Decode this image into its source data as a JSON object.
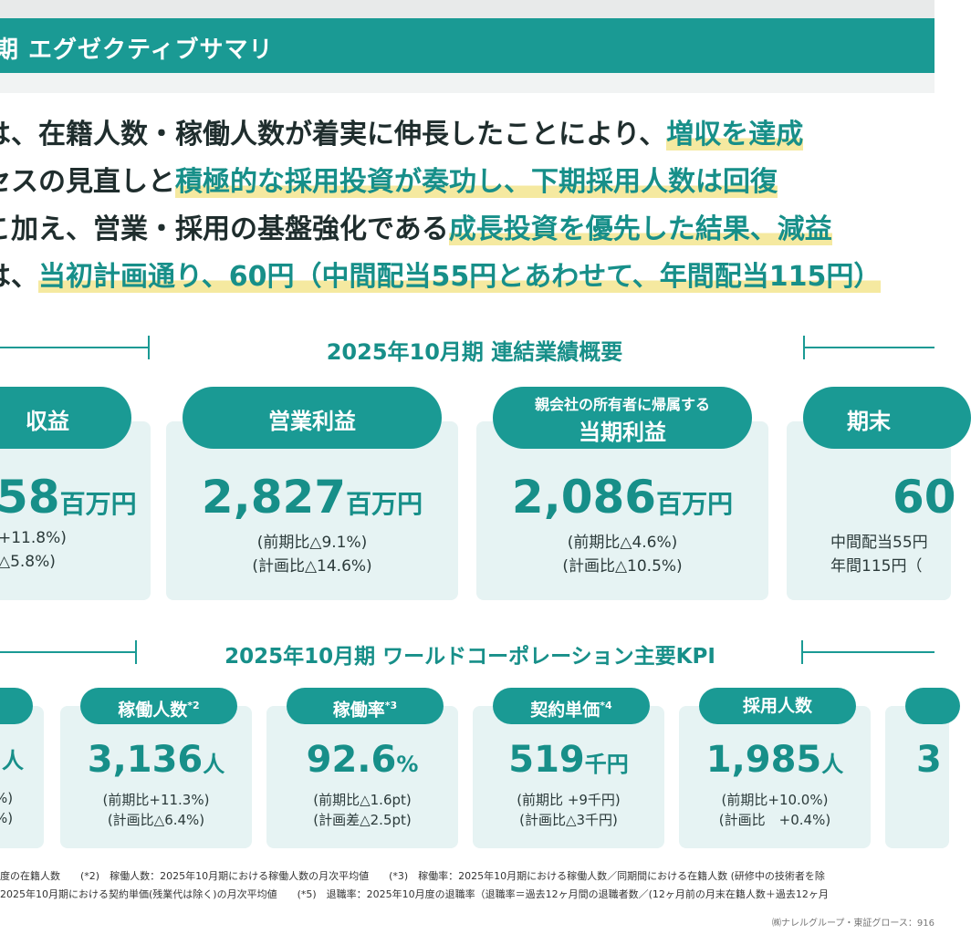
{
  "header": {
    "title": "期 エグゼクティブサマリ"
  },
  "summary": {
    "line1_plain": "は、在籍人数・稼働人数が着実に伸長したことにより、",
    "line1_hl": "増収を達成",
    "line2_plain": "セスの見直しと",
    "line2_hl": "積極的な採用投資が奏功し、下期採用人数は回復",
    "line3_plain": "こ加え、営業・採用の基盤強化である",
    "line3_hl": "成長投資を優先した結果、減益",
    "line4_plain": "は、",
    "line4_hl": "当初計画通り、60円（中間配当55円とあわせて、年間配当115円）"
  },
  "results": {
    "title": "2025年10月期 連結業績概要",
    "cards": [
      {
        "label": "収益",
        "sublabel": "",
        "value": "58",
        "unit": "百万円",
        "note1": "+11.8%)",
        "note2": "△5.8%)"
      },
      {
        "label": "営業利益",
        "sublabel": "",
        "value": "2,827",
        "unit": "百万円",
        "note1": "(前期比△9.1%)",
        "note2": "(計画比△14.6%)"
      },
      {
        "label": "当期利益",
        "sublabel": "親会社の所有者に帰属する",
        "value": "2,086",
        "unit": "百万円",
        "note1": "(前期比△4.6%)",
        "note2": "(計画比△10.5%)"
      },
      {
        "label": "期末",
        "sublabel": "",
        "value": "60",
        "unit": "",
        "note1": "中間配当55円",
        "note2": "年間115円（"
      }
    ]
  },
  "kpi": {
    "title": "2025年10月期 ワールドコーポレーション主要KPI",
    "cards": [
      {
        "label": "",
        "sup": "",
        "value": "",
        "unit": "人",
        "note1": "%)",
        "note2": "%)"
      },
      {
        "label": "稼働人数",
        "sup": "*2",
        "value": "3,136",
        "unit": "人",
        "note1": "(前期比+11.3%)",
        "note2": "(計画比△6.4%)"
      },
      {
        "label": "稼働率",
        "sup": "*3",
        "value": "92.6",
        "unit": "%",
        "note1": "(前期比△1.6pt)",
        "note2": "(計画差△2.5pt)"
      },
      {
        "label": "契約単価",
        "sup": "*4",
        "value": "519",
        "unit": "千円",
        "note1": "(前期比 +9千円)",
        "note2": "(計画比△3千円)"
      },
      {
        "label": "採用人数",
        "sup": "",
        "value": "1,985",
        "unit": "人",
        "note1": "(前期比+10.0%)",
        "note2": "(計画比　+0.4%)"
      },
      {
        "label": "",
        "sup": "",
        "value": "3",
        "unit": "",
        "note1": "",
        "note2": ""
      }
    ]
  },
  "footnotes": {
    "line1": "度の在籍人数　　(*2)　稼働人数：2025年10月期における稼働人数の月次平均値　　(*3)　稼働率：2025年10月期における稼働人数／同期間における在籍人数 (研修中の技術者を除",
    "line2": "2025年10月期における契約単価(残業代は除く)の月次平均値　　(*5)　退職率：2025年10月度の退職率（退職率＝過去12ヶ月間の退職者数／(12ヶ月前の月末在籍人数＋過去12ヶ月"
  },
  "copyright": "㈱ナレルグループ・東証グロース：916"
}
